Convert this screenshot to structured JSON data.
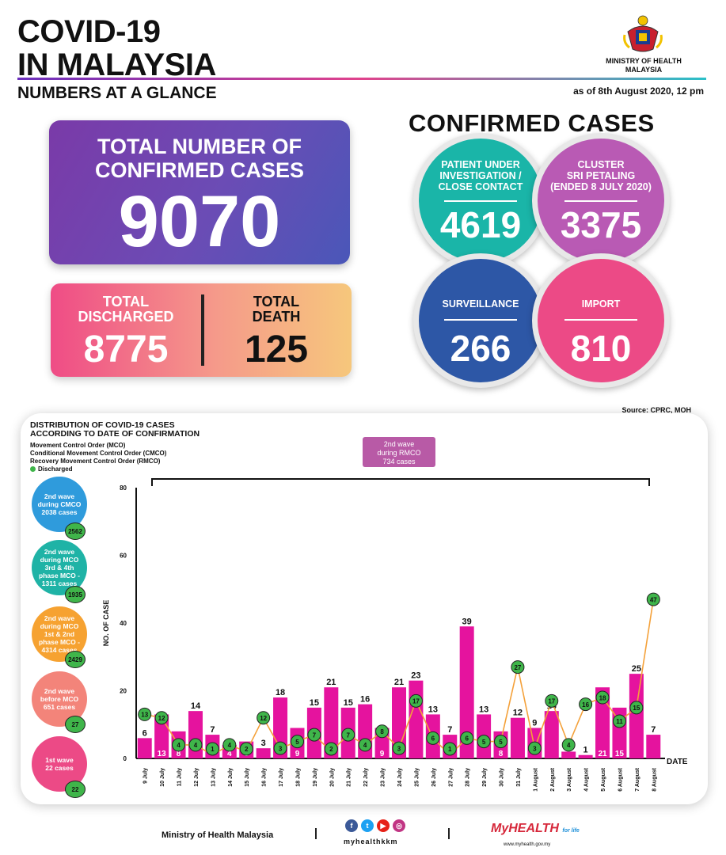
{
  "header": {
    "title_line1": "COVID-19",
    "title_line2": "IN MALAYSIA",
    "subtitle": "NUMBERS AT A GLANCE",
    "as_of": "as of 8th August 2020, 12 pm",
    "ministry_line1": "MINISTRY OF HEALTH",
    "ministry_line2": "MALAYSIA"
  },
  "totals": {
    "confirmed_label_line1": "TOTAL NUMBER OF",
    "confirmed_label_line2": "CONFIRMED CASES",
    "confirmed_value": "9070",
    "discharged_label_line1": "TOTAL",
    "discharged_label_line2": "DISCHARGED",
    "discharged_value": "8775",
    "death_label_line1": "TOTAL",
    "death_label_line2": "DEATH",
    "death_value": "125"
  },
  "confirmed_cases": {
    "title": "CONFIRMED CASES",
    "pui": {
      "label1": "PATIENT UNDER",
      "label2": "INVESTIGATION /",
      "label3": "CLOSE CONTACT",
      "value": "4619",
      "color": "#1ab5a8"
    },
    "cluster": {
      "label1": "CLUSTER",
      "label2": "SRI PETALING",
      "label3": "(ENDED 8 JULY 2020)",
      "value": "3375",
      "color": "#b95ab4"
    },
    "surveillance": {
      "label": "SURVEILLANCE",
      "value": "266",
      "color": "#2d57a6"
    },
    "import": {
      "label": "IMPORT",
      "value": "810",
      "color": "#ec4a86"
    }
  },
  "source": "Source: CPRC, MOH",
  "chart_panel": {
    "title_line1": "DISTRIBUTION OF COVID-19 CASES",
    "title_line2": "ACCORDING TO DATE OF CONFIRMATION",
    "legend": [
      {
        "label": "Movement Control Order (MCO)"
      },
      {
        "label": "Conditional Movement Control Order (CMCO)"
      },
      {
        "label": "Recovery Movement Control Order (RMCO)"
      },
      {
        "label": "Discharged",
        "color": "#3fb54a"
      }
    ],
    "rmco_box": {
      "line1": "2nd wave",
      "line2": "during RMCO",
      "line3": "734 cases"
    },
    "waves": [
      {
        "line1": "2nd wave",
        "line2": "during CMCO",
        "line3": "2038 cases",
        "line4": "",
        "line5": "",
        "badge": "2562",
        "color": "#2f9bdc"
      },
      {
        "line1": "2nd wave",
        "line2": "during MCO",
        "line3": "3rd & 4th",
        "line4": "phase MCO -",
        "line5": "1311 cases",
        "badge": "1935",
        "color": "#1fb3a6"
      },
      {
        "line1": "2nd wave",
        "line2": "during MCO",
        "line3": "1st & 2nd",
        "line4": "phase MCO -",
        "line5": "4314 cases",
        "badge": "2429",
        "color": "#f6a231"
      },
      {
        "line1": "2nd wave",
        "line2": "before MCO",
        "line3": "651 cases",
        "line4": "",
        "line5": "",
        "badge": "27",
        "color": "#f3847a"
      },
      {
        "line1": "1st wave",
        "line2": "22 cases",
        "line3": "",
        "line4": "",
        "line5": "",
        "badge": "22",
        "color": "#ec4a86"
      }
    ]
  },
  "chart_data": {
    "type": "bar",
    "xlabel": "DATE",
    "ylabel": "NO. OF CASE",
    "ylim": [
      0,
      80
    ],
    "yticks": [
      0,
      20,
      40,
      60,
      80
    ],
    "categories": [
      "9 July",
      "10 July",
      "11 July",
      "12 July",
      "13 July",
      "14 July",
      "15 July",
      "16 July",
      "17 July",
      "18 July",
      "19 July",
      "20 July",
      "21 July",
      "22 July",
      "23 July",
      "24 July",
      "25 July",
      "26 July",
      "27 July",
      "28 July",
      "29 July",
      "30 July",
      "31 July",
      "1 August",
      "2 August",
      "3 August",
      "4 August",
      "5 August",
      "6 August",
      "7 August",
      "8 August"
    ],
    "series": [
      {
        "type": "bar",
        "color": "#e5139e",
        "values": [
          6,
          13,
          8,
          14,
          7,
          4,
          5,
          3,
          18,
          9,
          15,
          21,
          15,
          16,
          9,
          21,
          23,
          13,
          7,
          39,
          13,
          8,
          12,
          9,
          14,
          2,
          1,
          21,
          15,
          25,
          7
        ]
      },
      {
        "name": "Discharged",
        "type": "line",
        "color": "#f4a13a",
        "marker_color": "#3fb54a",
        "values": [
          13,
          12,
          4,
          4,
          1,
          4,
          2,
          12,
          3,
          5,
          7,
          2,
          7,
          4,
          8,
          3,
          17,
          6,
          1,
          6,
          5,
          5,
          27,
          3,
          17,
          4,
          16,
          18,
          11,
          15,
          47
        ]
      }
    ]
  },
  "footer": {
    "ministry": "Ministry of Health Malaysia",
    "handle": "myhealthkkm",
    "brand": "MyHEALTH",
    "brand_tag": "for life",
    "url": "www.myhealth.gov.my"
  }
}
